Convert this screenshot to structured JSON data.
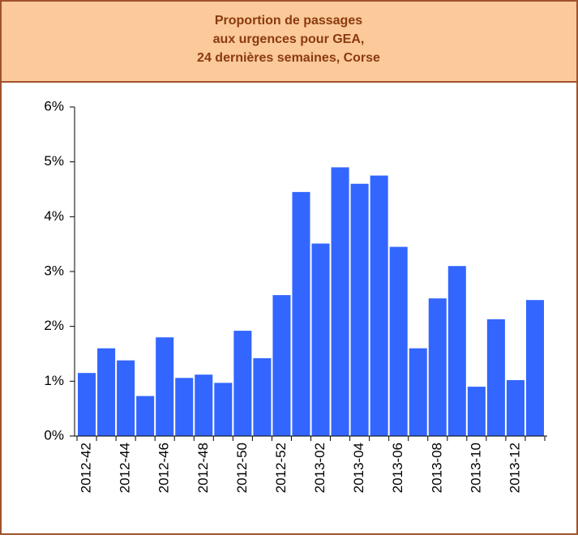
{
  "chart_data": {
    "type": "bar",
    "title": [
      "Proportion de passages",
      "aux urgences pour GEA,",
      "24 dernières semaines, Corse"
    ],
    "categories": [
      "2012-42",
      null,
      "2012-44",
      null,
      "2012-46",
      null,
      "2012-48",
      null,
      "2012-50",
      null,
      "2012-52",
      null,
      "2013-02",
      null,
      "2013-04",
      null,
      "2013-06",
      null,
      "2013-08",
      null,
      "2013-10",
      null,
      "2013-12",
      null
    ],
    "values": [
      1.15,
      1.6,
      1.38,
      0.73,
      1.8,
      1.06,
      1.12,
      0.97,
      1.92,
      1.42,
      2.57,
      4.45,
      3.51,
      4.9,
      4.6,
      4.75,
      3.45,
      1.6,
      2.51,
      3.1,
      0.9,
      2.13,
      1.02,
      2.48
    ],
    "color": "#3366ff",
    "ylim": [
      0,
      6
    ],
    "yticks": [
      {
        "value": 0,
        "label": "0%"
      },
      {
        "value": 1,
        "label": "1%"
      },
      {
        "value": 2,
        "label": "2%"
      },
      {
        "value": 3,
        "label": "3%"
      },
      {
        "value": 4,
        "label": "4%"
      },
      {
        "value": 5,
        "label": "5%"
      },
      {
        "value": 6,
        "label": "6%"
      }
    ],
    "grid": false
  }
}
